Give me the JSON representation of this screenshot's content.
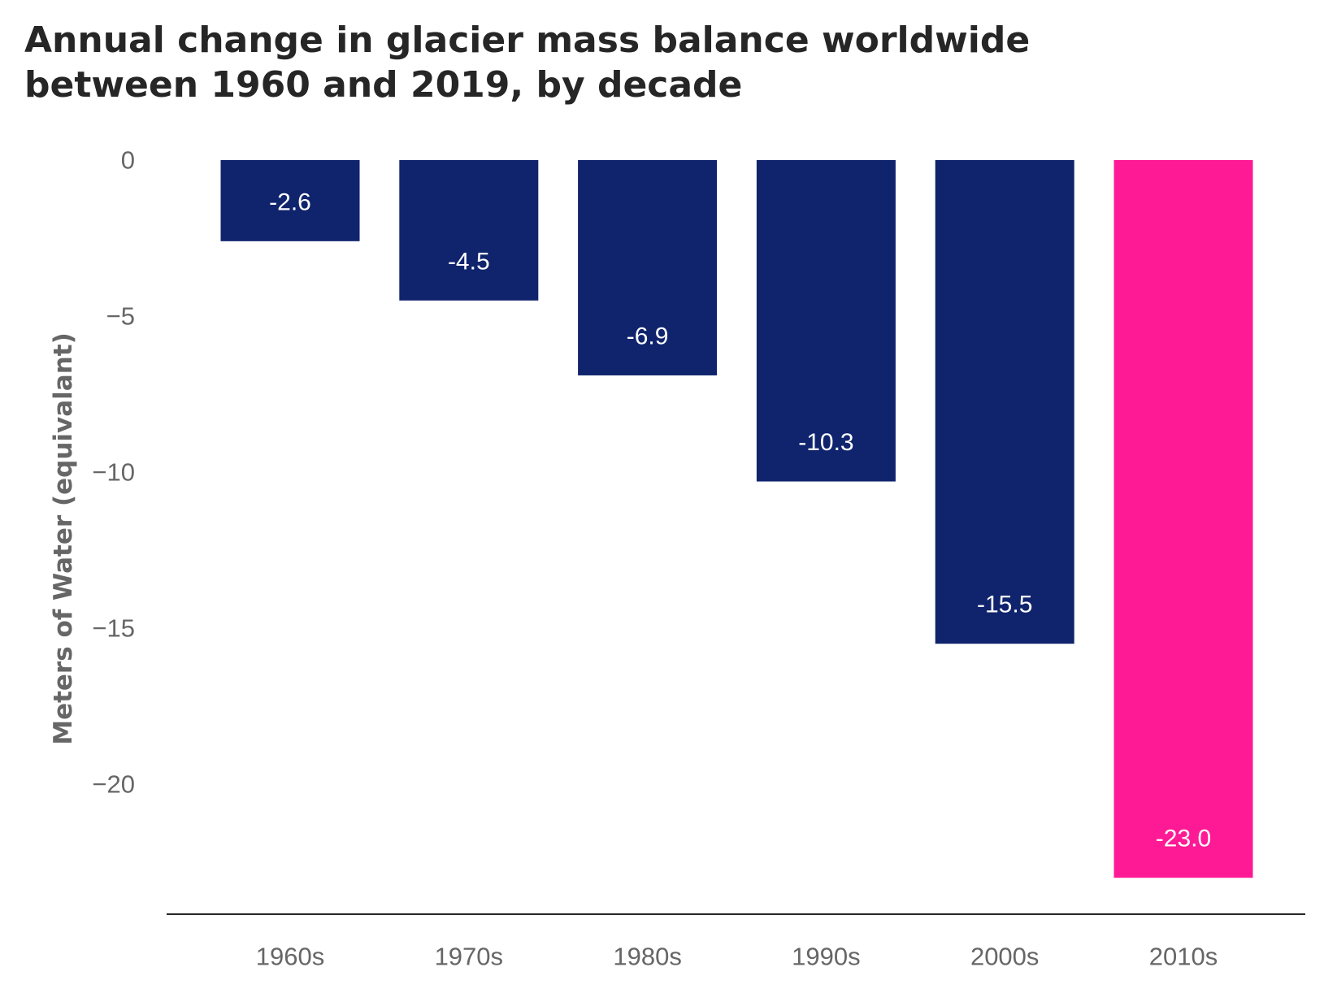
{
  "chart_data": {
    "type": "bar",
    "title": "Annual change in glacier mass balance worldwide between 1960 and 2019, by decade",
    "xlabel": "",
    "ylabel": "Meters of Water (equivalant)",
    "categories": [
      "1960s",
      "1970s",
      "1980s",
      "1990s",
      "2000s",
      "2010s"
    ],
    "values": [
      -2.6,
      -4.5,
      -6.9,
      -10.3,
      -15.5,
      -23.0
    ],
    "data_labels": [
      "-2.6",
      "-4.5",
      "-6.9",
      "-10.3",
      "-15.5",
      "-23.0"
    ],
    "yticks": [
      0,
      -5,
      -10,
      -15,
      -20
    ],
    "ytick_labels": [
      "0",
      "−5",
      "−10",
      "−15",
      "−20"
    ],
    "ylim": [
      -24.2,
      0
    ],
    "grid": false,
    "legend": "none",
    "colors": {
      "bar": "#10246d",
      "highlight": "#fe1995",
      "axis_line": "#262626",
      "tick_text": "#666666",
      "bar_label_text": "#ffffff"
    },
    "highlight_index": 5
  }
}
